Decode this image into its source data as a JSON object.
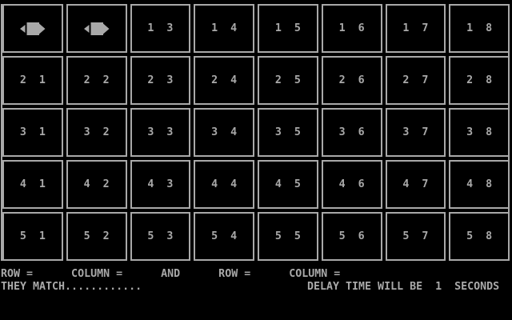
{
  "app": {
    "name": "memory-match-game"
  },
  "colors": {
    "foreground": "#a9a9a9",
    "background": "#000000"
  },
  "grid": {
    "rows": 5,
    "cols": 8,
    "matched_symbol": "gem-arrow",
    "cells": [
      {
        "row": 1,
        "col": 1,
        "type": "icon"
      },
      {
        "row": 1,
        "col": 2,
        "type": "icon"
      },
      {
        "row": 1,
        "col": 3,
        "type": "label",
        "label": "1  3"
      },
      {
        "row": 1,
        "col": 4,
        "type": "label",
        "label": "1  4"
      },
      {
        "row": 1,
        "col": 5,
        "type": "label",
        "label": "1  5"
      },
      {
        "row": 1,
        "col": 6,
        "type": "label",
        "label": "1  6"
      },
      {
        "row": 1,
        "col": 7,
        "type": "label",
        "label": "1  7"
      },
      {
        "row": 1,
        "col": 8,
        "type": "label",
        "label": "1  8"
      },
      {
        "row": 2,
        "col": 1,
        "type": "label",
        "label": "2  1"
      },
      {
        "row": 2,
        "col": 2,
        "type": "label",
        "label": "2  2"
      },
      {
        "row": 2,
        "col": 3,
        "type": "label",
        "label": "2  3"
      },
      {
        "row": 2,
        "col": 4,
        "type": "label",
        "label": "2  4"
      },
      {
        "row": 2,
        "col": 5,
        "type": "label",
        "label": "2  5"
      },
      {
        "row": 2,
        "col": 6,
        "type": "label",
        "label": "2  6"
      },
      {
        "row": 2,
        "col": 7,
        "type": "label",
        "label": "2  7"
      },
      {
        "row": 2,
        "col": 8,
        "type": "label",
        "label": "2  8"
      },
      {
        "row": 3,
        "col": 1,
        "type": "label",
        "label": "3  1"
      },
      {
        "row": 3,
        "col": 2,
        "type": "label",
        "label": "3  2"
      },
      {
        "row": 3,
        "col": 3,
        "type": "label",
        "label": "3  3"
      },
      {
        "row": 3,
        "col": 4,
        "type": "label",
        "label": "3  4"
      },
      {
        "row": 3,
        "col": 5,
        "type": "label",
        "label": "3  5"
      },
      {
        "row": 3,
        "col": 6,
        "type": "label",
        "label": "3  6"
      },
      {
        "row": 3,
        "col": 7,
        "type": "label",
        "label": "3  7"
      },
      {
        "row": 3,
        "col": 8,
        "type": "label",
        "label": "3  8"
      },
      {
        "row": 4,
        "col": 1,
        "type": "label",
        "label": "4  1"
      },
      {
        "row": 4,
        "col": 2,
        "type": "label",
        "label": "4  2"
      },
      {
        "row": 4,
        "col": 3,
        "type": "label",
        "label": "4  3"
      },
      {
        "row": 4,
        "col": 4,
        "type": "label",
        "label": "4  4"
      },
      {
        "row": 4,
        "col": 5,
        "type": "label",
        "label": "4  5"
      },
      {
        "row": 4,
        "col": 6,
        "type": "label",
        "label": "4  6"
      },
      {
        "row": 4,
        "col": 7,
        "type": "label",
        "label": "4  7"
      },
      {
        "row": 4,
        "col": 8,
        "type": "label",
        "label": "4  8"
      },
      {
        "row": 5,
        "col": 1,
        "type": "label",
        "label": "5  1"
      },
      {
        "row": 5,
        "col": 2,
        "type": "label",
        "label": "5  2"
      },
      {
        "row": 5,
        "col": 3,
        "type": "label",
        "label": "5  3"
      },
      {
        "row": 5,
        "col": 4,
        "type": "label",
        "label": "5  4"
      },
      {
        "row": 5,
        "col": 5,
        "type": "label",
        "label": "5  5"
      },
      {
        "row": 5,
        "col": 6,
        "type": "label",
        "label": "5  6"
      },
      {
        "row": 5,
        "col": 7,
        "type": "label",
        "label": "5  7"
      },
      {
        "row": 5,
        "col": 8,
        "type": "label",
        "label": "5  8"
      }
    ]
  },
  "status": {
    "prompt_line": "ROW =      COLUMN =      AND      ROW =      COLUMN =",
    "match_message": "THEY MATCH............",
    "delay_message": "DELAY TIME WILL BE  1  SECONDS",
    "delay_seconds": "1"
  }
}
